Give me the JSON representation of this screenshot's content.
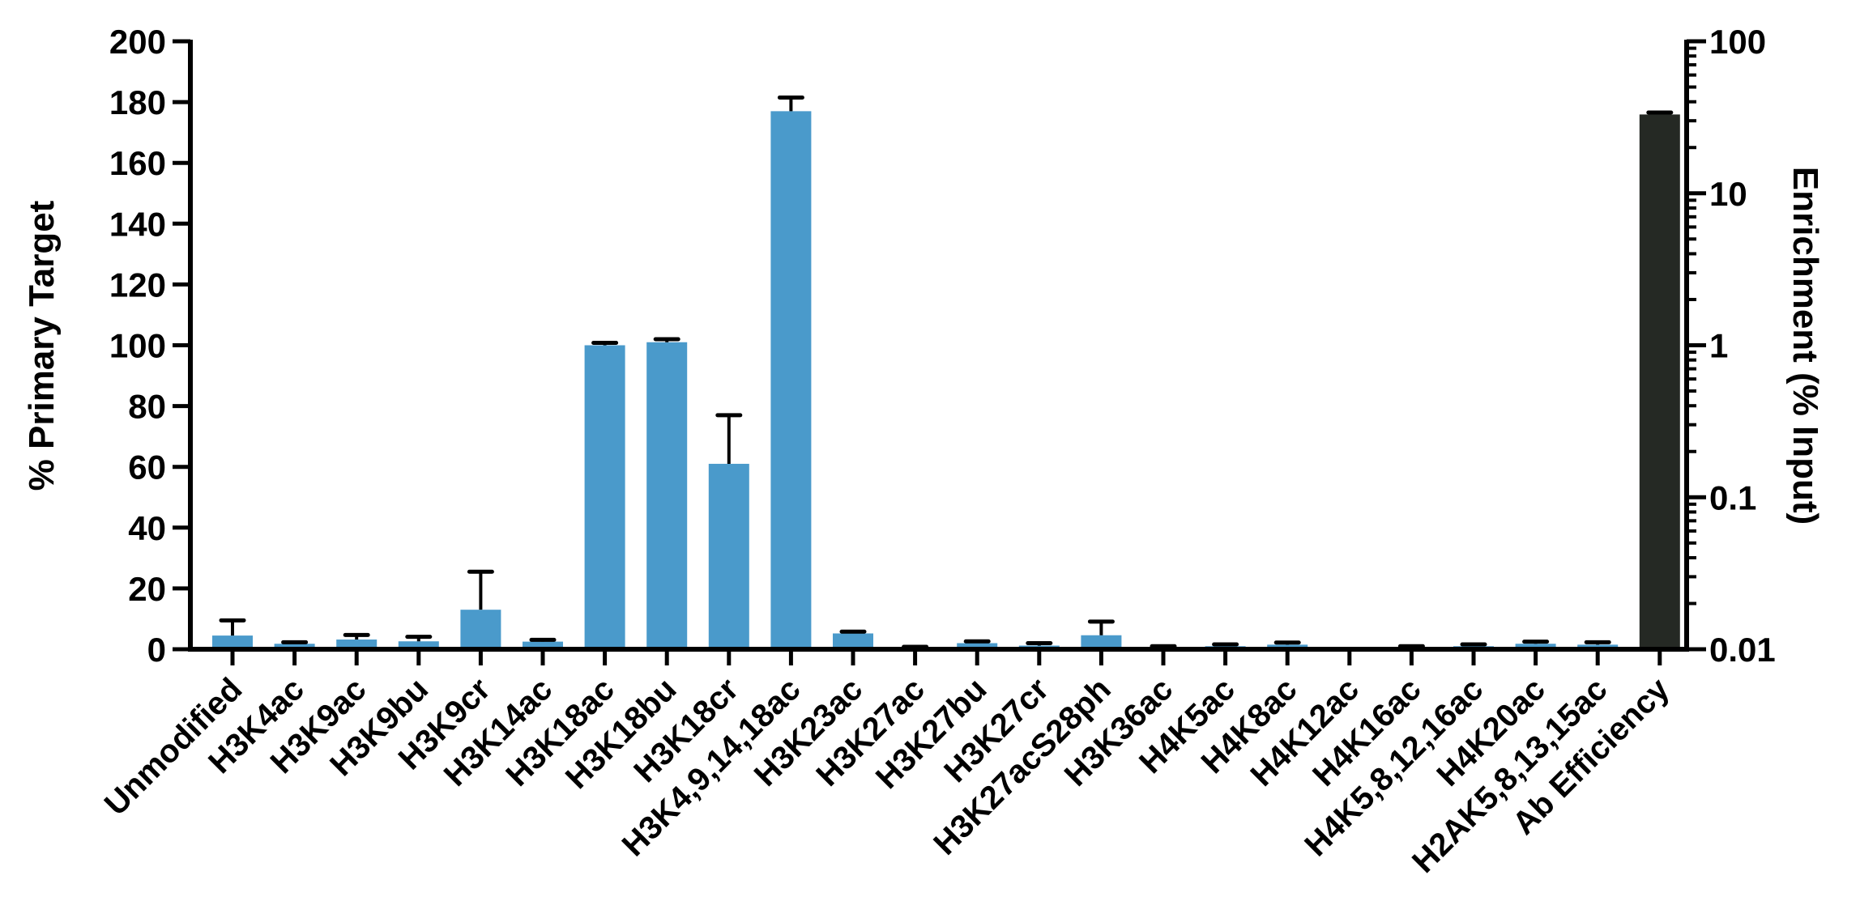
{
  "chart_data": {
    "type": "bar",
    "categories": [
      "Unmodified",
      "H3K4ac",
      "H3K9ac",
      "H3K9bu",
      "H3K9cr",
      "H3K14ac",
      "H3K18ac",
      "H3K18bu",
      "H3K18cr",
      "H3K4,9,14,18ac",
      "H3K23ac",
      "H3K27ac",
      "H3K27bu",
      "H3K27cr",
      "H3K27acS28ph",
      "H3K36ac",
      "H4K5ac",
      "H4K8ac",
      "H4K12ac",
      "H4K16ac",
      "H4K5,8,12,16ac",
      "H4K20ac",
      "H2AK5,8,13,15ac",
      "Ab Efficiency"
    ],
    "series": [
      {
        "axis": "left",
        "color": "#4a9acb",
        "values": [
          4.5,
          1.8,
          3.2,
          2.6,
          13,
          2.5,
          100,
          101,
          61,
          177,
          5.2,
          0.4,
          2.0,
          1.2,
          4.6,
          0.6,
          1.0,
          1.5,
          0,
          0.6,
          1.0,
          1.8,
          1.5,
          null
        ],
        "error": [
          5,
          0.5,
          1.5,
          1.5,
          12.5,
          0.6,
          0.8,
          1.0,
          16,
          4.5,
          0.6,
          0.4,
          0.6,
          0.8,
          4.5,
          0.4,
          0.6,
          0.7,
          0,
          0.4,
          0.6,
          0.7,
          0.8,
          null
        ]
      },
      {
        "axis": "right",
        "color": "#252924",
        "values": [
          null,
          null,
          null,
          null,
          null,
          null,
          null,
          null,
          null,
          null,
          null,
          null,
          null,
          null,
          null,
          null,
          null,
          null,
          null,
          null,
          null,
          null,
          null,
          33
        ],
        "error": [
          null,
          null,
          null,
          null,
          null,
          null,
          null,
          null,
          null,
          null,
          null,
          null,
          null,
          null,
          null,
          null,
          null,
          null,
          null,
          null,
          null,
          null,
          null,
          1
        ]
      }
    ],
    "ylabel": "% Primary  Target",
    "ylabel_right": "Enrichment (% Input)",
    "ylim": [
      0,
      200
    ],
    "yticks": [
      0,
      20,
      40,
      60,
      80,
      100,
      120,
      140,
      160,
      180,
      200
    ],
    "ylim_right": [
      0.01,
      100
    ],
    "yscale_right": "log",
    "yticks_right": [
      0.01,
      0.1,
      1,
      10,
      100
    ],
    "ytick_labels_right": [
      "0.01",
      "0.1",
      "1",
      "10",
      "100"
    ],
    "grid": false,
    "legend": "none"
  }
}
